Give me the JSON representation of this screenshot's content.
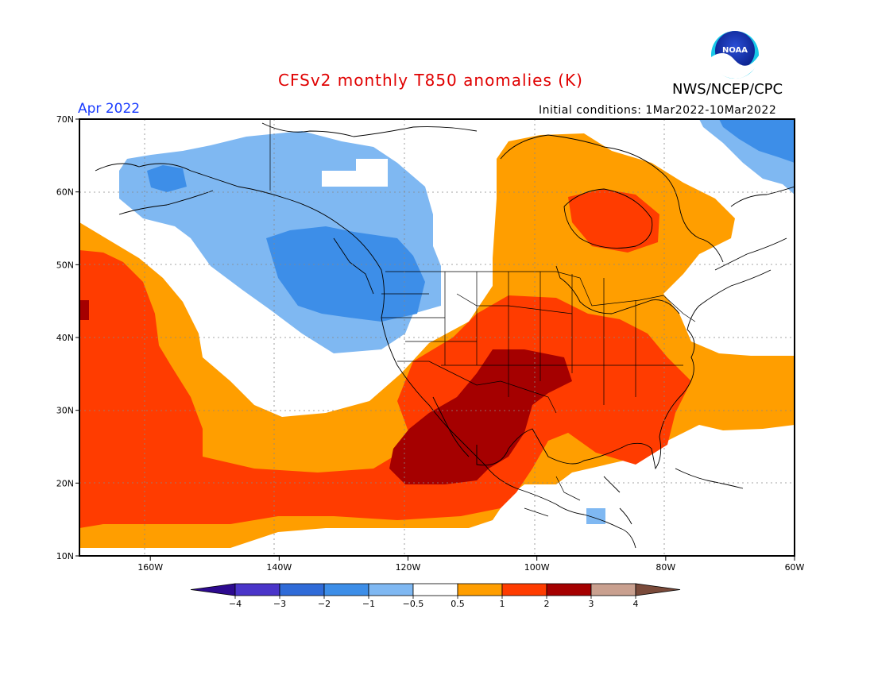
{
  "header": {
    "title": "CFSv2 monthly T850 anomalies (K)",
    "organization": "NWS/NCEP/CPC",
    "logo_text": "NOAA",
    "period": "Apr 2022",
    "initial_conditions": "Initial conditions: 1Mar2022-10Mar2022"
  },
  "map": {
    "lon_range": [
      -171,
      -60
    ],
    "lat_range": [
      10,
      70
    ],
    "lon_ticks": [
      {
        "lon": -160,
        "label": "160W"
      },
      {
        "lon": -140,
        "label": "140W"
      },
      {
        "lon": -120,
        "label": "120W"
      },
      {
        "lon": -100,
        "label": "100W"
      },
      {
        "lon": -80,
        "label": "80W"
      },
      {
        "lon": -60,
        "label": "60W"
      }
    ],
    "lat_ticks": [
      {
        "lat": 10,
        "label": "10N"
      },
      {
        "lat": 20,
        "label": "20N"
      },
      {
        "lat": 30,
        "label": "30N"
      },
      {
        "lat": 40,
        "label": "40N"
      },
      {
        "lat": 50,
        "label": "50N"
      },
      {
        "lat": 60,
        "label": "60N"
      },
      {
        "lat": 70,
        "label": "70N"
      }
    ],
    "grid": true,
    "colorbar": {
      "colors": [
        "#2d0a8f",
        "#4a35c9",
        "#2f6bd8",
        "#3d8ee8",
        "#7fb8f2",
        "#ffffff",
        "#ff9e00",
        "#ff3c00",
        "#a50000",
        "#c9a08f",
        "#7a4a3a"
      ],
      "labels": [
        "−4",
        "−3",
        "−2",
        "−1",
        "−0.5",
        "0.5",
        "1",
        "2",
        "3",
        "4"
      ]
    }
  }
}
